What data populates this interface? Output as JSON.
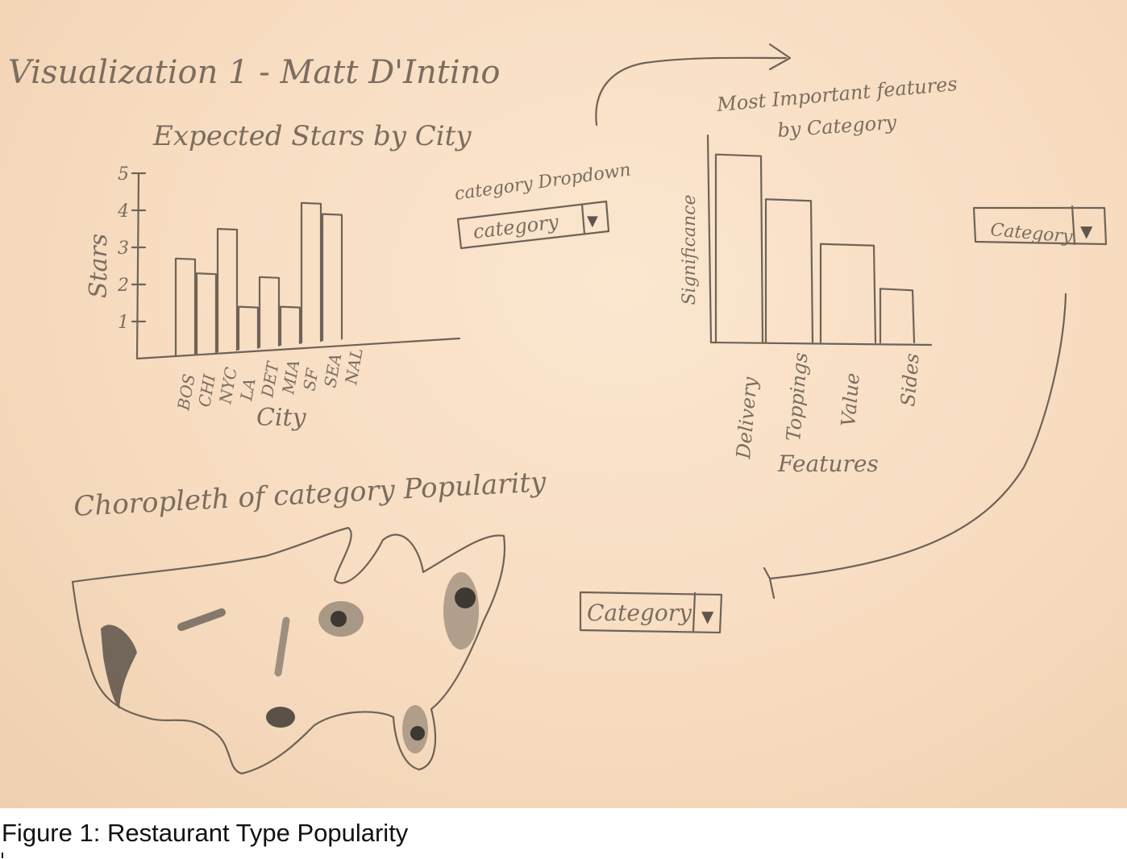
{
  "header": {
    "title": "Visualization 1 - Matt D'Intino"
  },
  "caption": "Figure 1: Restaurant Type Popularity",
  "colors": {
    "paper": "#f7dcc0",
    "pencil": "#6e6357",
    "shading": "#4a4540"
  },
  "stars_chart": {
    "title": "Expected Stars by City",
    "ylabel": "Stars",
    "xlabel": "City",
    "ytick_labels": [
      "1",
      "2",
      "3",
      "4",
      "5"
    ],
    "chart_data": {
      "type": "bar",
      "categories": [
        "BOS",
        "CHI",
        "NYC",
        "LA",
        "DET",
        "MIA",
        "SF",
        "SEA",
        "NAL"
      ],
      "values": [
        2.7,
        2.3,
        3.5,
        1.4,
        2.2,
        1.4,
        4.2,
        3.9,
        0
      ],
      "ylim": [
        0,
        5
      ]
    }
  },
  "category_dropdown": {
    "caption": "category Dropdown",
    "label": "category",
    "arrow": "▼"
  },
  "features_chart": {
    "title_line1": "Most Important features",
    "title_line2": "by Category",
    "ylabel": "Significance",
    "xlabel": "Features",
    "chart_data": {
      "type": "bar",
      "categories": [
        "Delivery",
        "Toppings",
        "Value",
        "Sides"
      ],
      "values": [
        4.2,
        3.2,
        2.2,
        1.2
      ]
    }
  },
  "features_dropdown": {
    "label": "Category",
    "arrow": "▼"
  },
  "map": {
    "title": "Choropleth of category Popularity"
  },
  "map_dropdown": {
    "label": "Category",
    "arrow": "▼"
  }
}
